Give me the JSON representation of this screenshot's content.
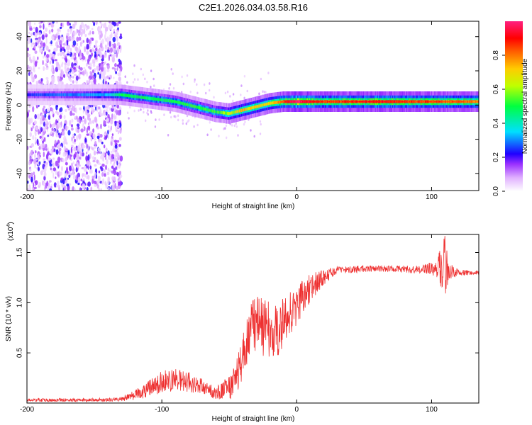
{
  "figure_title": "C2E1.2026.034.03.58.R16",
  "chart_data": [
    {
      "type": "heatmap",
      "title": "C2E1.2026.034.03.58.R16",
      "xlabel": "Height of straight line (km)",
      "ylabel": "Frequency (Hz)",
      "xlim": [
        -200,
        135
      ],
      "ylim": [
        -50,
        49
      ],
      "xticks": [
        -200,
        -100,
        0,
        100
      ],
      "yticks": [
        -40,
        -20,
        0,
        20,
        40
      ],
      "colorbar": {
        "label": "Normalized spectral amplitude",
        "range": [
          0,
          1
        ],
        "ticks": [
          0.0,
          0.2,
          0.4,
          0.6,
          0.8
        ],
        "colors": [
          "#ffffff",
          "#c080ff",
          "#7a00ff",
          "#0000ff",
          "#00ffff",
          "#00ff40",
          "#ffff00",
          "#ff8000",
          "#ff0000",
          "#ff2080"
        ]
      },
      "ridge": {
        "x": [
          -200,
          -180,
          -160,
          -140,
          -130,
          -120,
          -110,
          -100,
          -90,
          -80,
          -70,
          -60,
          -50,
          -45,
          -40,
          -30,
          -20,
          -10,
          0,
          20,
          40,
          60,
          80,
          100,
          110,
          135
        ],
        "y": [
          6,
          6,
          6,
          6,
          6,
          5,
          4,
          3,
          2,
          0,
          -2,
          -4,
          -5,
          -4,
          -3,
          -1,
          1,
          2,
          2,
          2,
          2,
          2,
          2,
          2,
          2,
          2
        ]
      },
      "ridge_amplitude": {
        "x": [
          -200,
          -140,
          -130,
          -100,
          -60,
          -40,
          -20,
          0,
          20,
          60,
          100,
          135
        ],
        "amp": [
          0.25,
          0.35,
          0.5,
          0.5,
          0.55,
          0.75,
          0.7,
          1.0,
          0.85,
          0.9,
          0.85,
          0.8
        ]
      },
      "noise_region_x": [
        -200,
        -130
      ]
    },
    {
      "type": "line",
      "xlabel": "Height of straight line (km)",
      "ylabel": "SNR (10 * v/v)",
      "scale_label": "(x10",
      "scale_exp": "4",
      "scale_close": ")",
      "xlim": [
        -200,
        135
      ],
      "ylim": [
        0,
        1.68
      ],
      "xticks": [
        -200,
        -100,
        0,
        100
      ],
      "yticks": [
        0.5,
        1.0,
        1.5
      ],
      "ytick_labels": [
        "0.5",
        "1.0",
        "1.5"
      ],
      "color": "#ee3030",
      "envelope": {
        "x": [
          -200,
          -140,
          -130,
          -120,
          -110,
          -100,
          -90,
          -80,
          -70,
          -60,
          -50,
          -45,
          -40,
          -35,
          -30,
          -25,
          -20,
          -15,
          -10,
          -5,
          0,
          10,
          20,
          30,
          50,
          70,
          90,
          100,
          105,
          108,
          110,
          112,
          115,
          120,
          135
        ],
        "y": [
          0.03,
          0.03,
          0.04,
          0.08,
          0.14,
          0.2,
          0.24,
          0.21,
          0.17,
          0.1,
          0.15,
          0.25,
          0.45,
          0.72,
          0.8,
          0.76,
          0.74,
          0.7,
          0.8,
          0.9,
          1.0,
          1.14,
          1.26,
          1.32,
          1.34,
          1.34,
          1.33,
          1.34,
          1.36,
          1.35,
          1.33,
          1.32,
          1.31,
          1.3,
          1.3
        ]
      },
      "noise_amplitude": {
        "x": [
          -200,
          -130,
          -120,
          -100,
          -80,
          -60,
          -50,
          -40,
          -30,
          -20,
          -10,
          0,
          10,
          20,
          30,
          60,
          90,
          100,
          105,
          108,
          110,
          112,
          115,
          120,
          135
        ],
        "amp": [
          0.015,
          0.02,
          0.05,
          0.12,
          0.1,
          0.06,
          0.12,
          0.22,
          0.3,
          0.28,
          0.25,
          0.22,
          0.15,
          0.08,
          0.04,
          0.03,
          0.04,
          0.06,
          0.12,
          0.25,
          0.35,
          0.2,
          0.08,
          0.03,
          0.02
        ]
      }
    }
  ]
}
